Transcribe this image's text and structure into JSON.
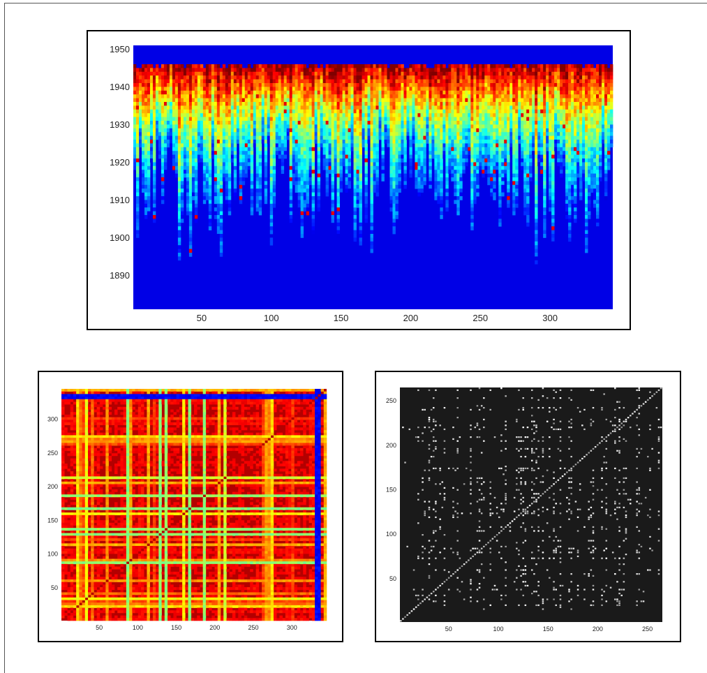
{
  "chart_data": [
    {
      "type": "heatmap",
      "x_ticks": [
        "50",
        "100",
        "150",
        "200",
        "250",
        "300"
      ],
      "y_ticks": [
        "1950",
        "1940",
        "1930",
        "1920",
        "1910",
        "1900",
        "1890"
      ],
      "x_range": [
        1,
        345
      ],
      "y_range": [
        1881,
        1951
      ],
      "colormap": "jet",
      "columns": 345,
      "rows": 70
    },
    {
      "type": "heatmap",
      "x_ticks": [
        "50",
        "100",
        "150",
        "200",
        "250",
        "300"
      ],
      "y_ticks": [
        "300",
        "250",
        "200",
        "150",
        "100",
        "50"
      ],
      "x_range": [
        1,
        345
      ],
      "y_range": [
        1,
        345
      ],
      "colormap": "jet"
    },
    {
      "type": "heatmap",
      "x_ticks": [
        "50",
        "100",
        "150",
        "200",
        "250"
      ],
      "y_ticks": [
        "250",
        "200",
        "150",
        "100",
        "50"
      ],
      "x_range": [
        1,
        265
      ],
      "y_range": [
        1,
        265
      ],
      "colormap": "gray"
    }
  ]
}
